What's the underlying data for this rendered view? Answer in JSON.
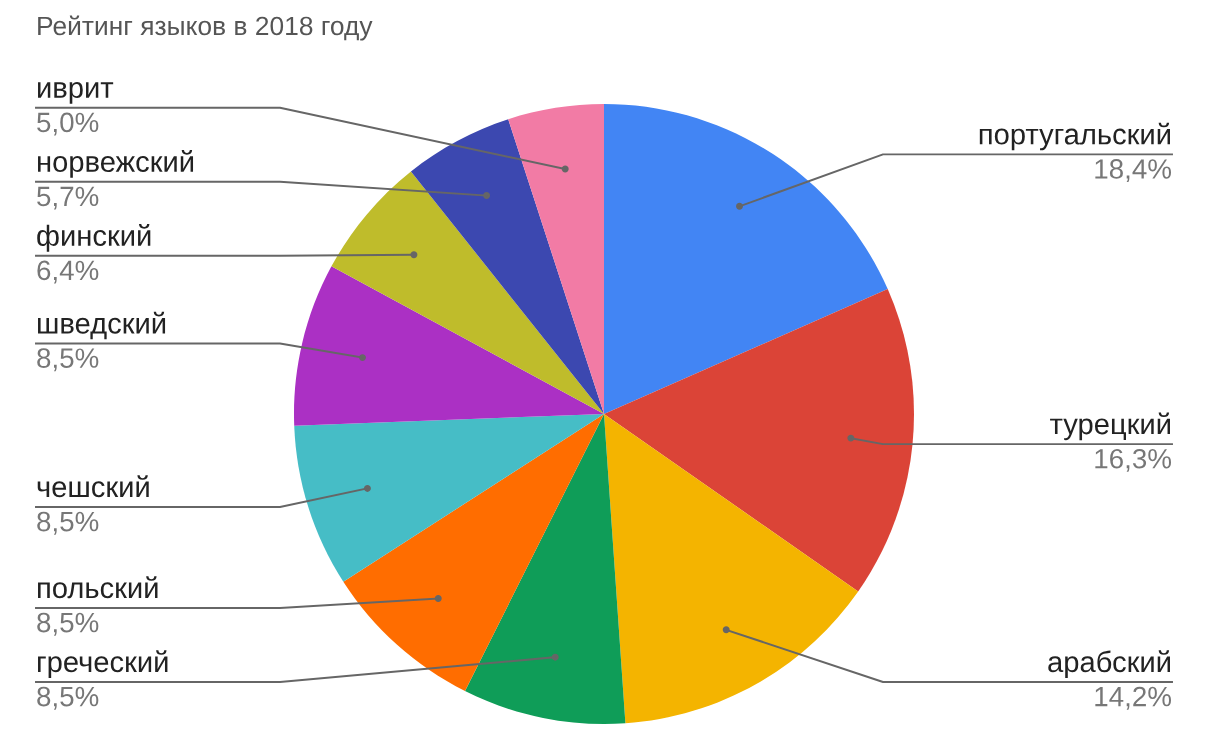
{
  "chart_data": {
    "type": "pie",
    "title": "Рейтинг языков в 2018 году",
    "categories": [
      "португальский",
      "турецкий",
      "арабский",
      "греческий",
      "польский",
      "чешский",
      "шведский",
      "финский",
      "норвежский",
      "иврит"
    ],
    "values": [
      18.4,
      16.3,
      14.2,
      8.5,
      8.5,
      8.5,
      8.5,
      6.4,
      5.7,
      5.0
    ],
    "value_labels": [
      "18,4%",
      "16,3%",
      "14,2%",
      "8,5%",
      "8,5%",
      "8,5%",
      "8,5%",
      "6,4%",
      "5,7%",
      "5,0%"
    ],
    "colors": [
      "#4285f4",
      "#db4437",
      "#f4b400",
      "#0f9d58",
      "#ff6d00",
      "#46bdc6",
      "#ab30c4",
      "#bfbc2b",
      "#3c48b0",
      "#f27ba5"
    ]
  }
}
